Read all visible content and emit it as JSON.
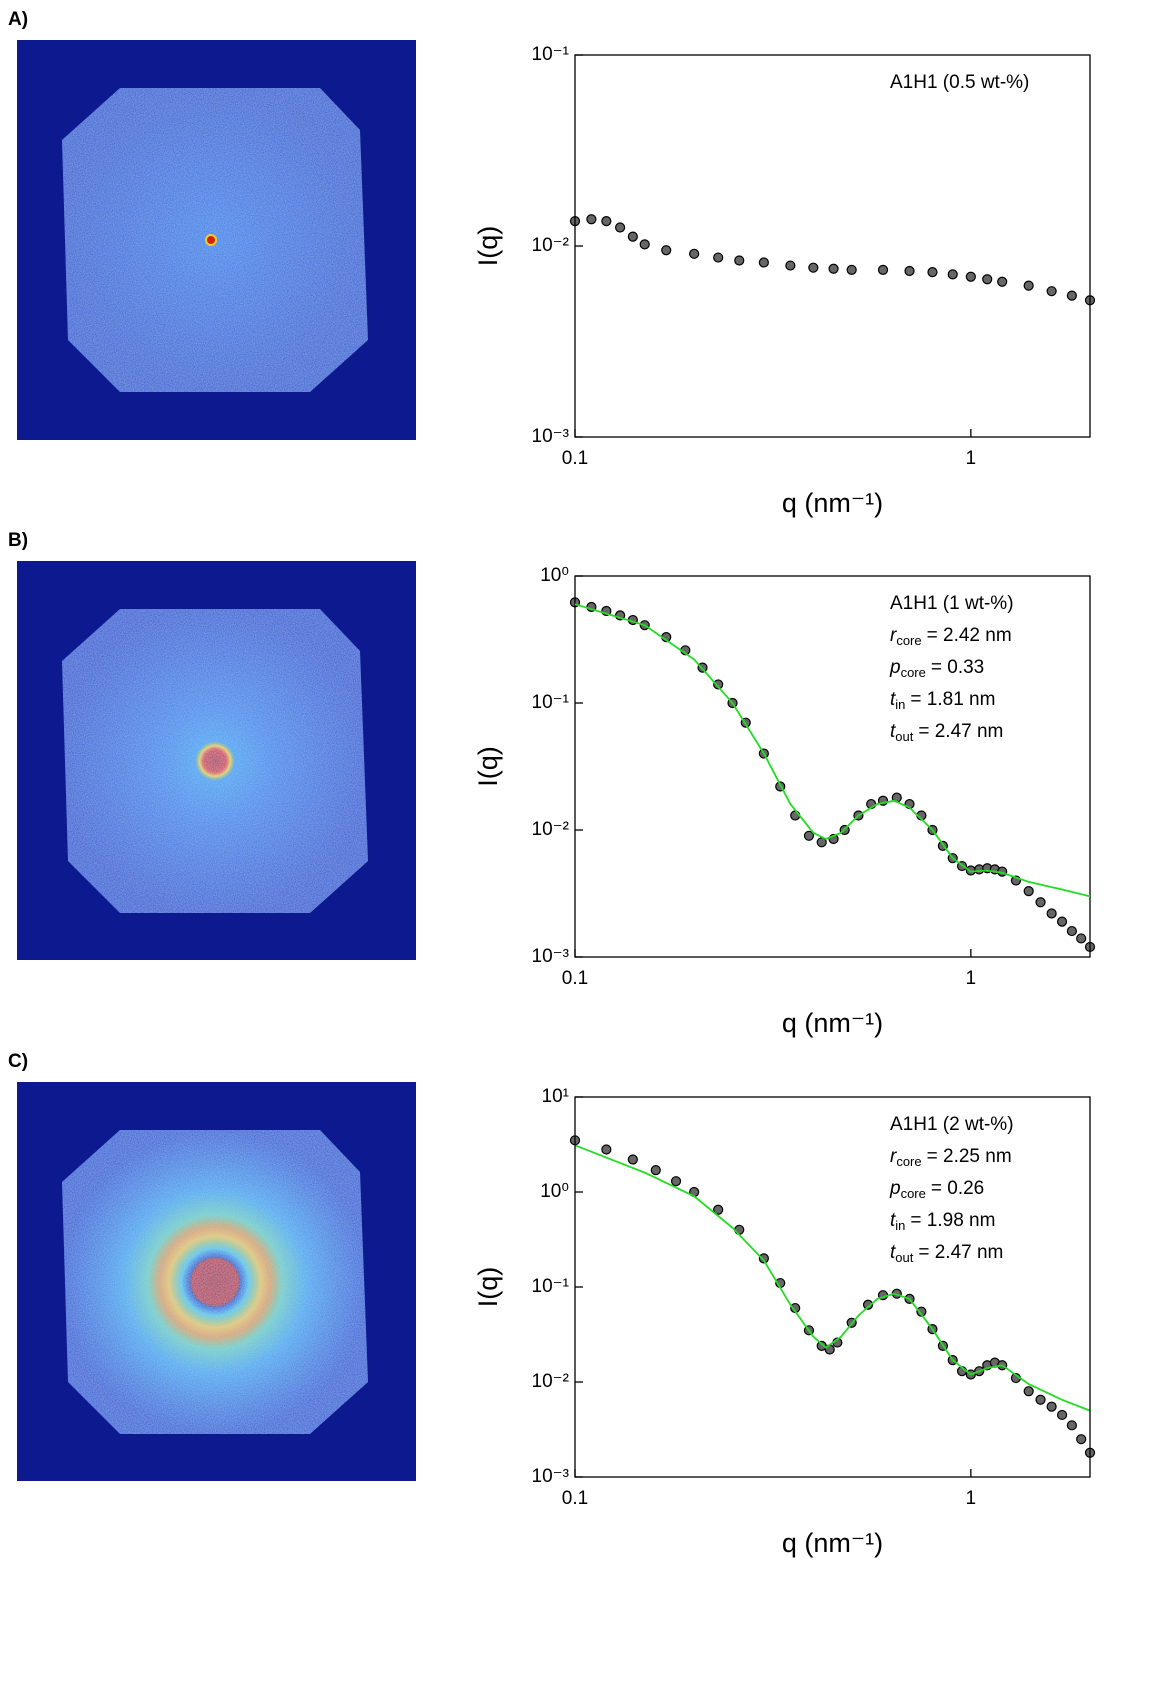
{
  "chart_data": [
    {
      "type": "scatter",
      "panel": "A)",
      "xlabel": "q (nm⁻¹)",
      "ylabel": "I(q)",
      "log_x": true,
      "log_y": true,
      "xlim": [
        0.1,
        2
      ],
      "ylim": [
        0.001,
        0.1
      ],
      "xticks": [
        0.1,
        1
      ],
      "yticks": [
        {
          "value": 0.001,
          "label": "10⁻³"
        },
        {
          "value": 0.01,
          "label": "10⁻²"
        },
        {
          "value": 0.1,
          "label": "10⁻¹"
        }
      ],
      "annotations": [
        {
          "text": "A1H1 (0.5 wt-%)"
        }
      ],
      "series": [
        {
          "type": "scatter",
          "color": "#000000",
          "x": [
            0.1,
            0.11,
            0.12,
            0.13,
            0.14,
            0.15,
            0.17,
            0.2,
            0.23,
            0.26,
            0.3,
            0.35,
            0.4,
            0.45,
            0.5,
            0.6,
            0.7,
            0.8,
            0.9,
            1.0,
            1.1,
            1.2,
            1.4,
            1.6,
            1.8,
            2.0
          ],
          "values": [
            0.0135,
            0.0138,
            0.0135,
            0.0125,
            0.0112,
            0.0102,
            0.0095,
            0.0091,
            0.0087,
            0.0084,
            0.0082,
            0.0079,
            0.0077,
            0.0076,
            0.0075,
            0.0075,
            0.0074,
            0.0073,
            0.0071,
            0.0069,
            0.0067,
            0.0065,
            0.0062,
            0.0058,
            0.0055,
            0.0052
          ]
        }
      ]
    },
    {
      "type": "scatter",
      "panel": "B)",
      "xlabel": "q (nm⁻¹)",
      "ylabel": "I(q)",
      "log_x": true,
      "log_y": true,
      "xlim": [
        0.1,
        2
      ],
      "ylim": [
        0.001,
        1
      ],
      "xticks": [
        0.1,
        1
      ],
      "yticks": [
        {
          "value": 0.001,
          "label": "10⁻³"
        },
        {
          "value": 0.01,
          "label": "10⁻²"
        },
        {
          "value": 0.1,
          "label": "10⁻¹"
        },
        {
          "value": 1,
          "label": "10⁰"
        }
      ],
      "annotations": [
        {
          "text": "A1H1 (1 wt-%)"
        },
        {
          "symbol": "r",
          "sub": "core",
          "text": "= 2.42 nm"
        },
        {
          "symbol": "p",
          "sub": "core",
          "text": "= 0.33"
        },
        {
          "symbol": "t",
          "sub": "in",
          "text": "= 1.81 nm"
        },
        {
          "symbol": "t",
          "sub": "out",
          "text": "= 2.47 nm"
        }
      ],
      "series": [
        {
          "type": "scatter",
          "color": "#000000",
          "x": [
            0.1,
            0.11,
            0.12,
            0.13,
            0.14,
            0.15,
            0.17,
            0.19,
            0.21,
            0.23,
            0.25,
            0.27,
            0.3,
            0.33,
            0.36,
            0.39,
            0.42,
            0.45,
            0.48,
            0.52,
            0.56,
            0.6,
            0.65,
            0.7,
            0.75,
            0.8,
            0.85,
            0.9,
            0.95,
            1.0,
            1.05,
            1.1,
            1.15,
            1.2,
            1.3,
            1.4,
            1.5,
            1.6,
            1.7,
            1.8,
            1.9,
            2.0
          ],
          "values": [
            0.62,
            0.57,
            0.53,
            0.49,
            0.45,
            0.41,
            0.33,
            0.26,
            0.19,
            0.14,
            0.1,
            0.07,
            0.04,
            0.022,
            0.013,
            0.009,
            0.008,
            0.0085,
            0.01,
            0.013,
            0.016,
            0.017,
            0.018,
            0.016,
            0.013,
            0.01,
            0.0075,
            0.006,
            0.0052,
            0.0048,
            0.0049,
            0.005,
            0.0049,
            0.0047,
            0.004,
            0.0033,
            0.0027,
            0.0022,
            0.0019,
            0.0016,
            0.0014,
            0.0012
          ]
        },
        {
          "type": "line",
          "color": "#22dd22",
          "x": [
            0.1,
            0.15,
            0.2,
            0.25,
            0.3,
            0.35,
            0.4,
            0.43,
            0.47,
            0.52,
            0.58,
            0.64,
            0.7,
            0.8,
            0.9,
            1.0,
            1.1,
            1.2,
            1.4,
            1.7,
            2.0
          ],
          "values": [
            0.6,
            0.41,
            0.22,
            0.1,
            0.04,
            0.016,
            0.0095,
            0.0085,
            0.0095,
            0.013,
            0.016,
            0.017,
            0.015,
            0.01,
            0.006,
            0.0047,
            0.0048,
            0.0046,
            0.0039,
            0.0034,
            0.003
          ]
        }
      ]
    },
    {
      "type": "scatter",
      "panel": "C)",
      "xlabel": "q (nm⁻¹)",
      "ylabel": "I(q)",
      "log_x": true,
      "log_y": true,
      "xlim": [
        0.1,
        2
      ],
      "ylim": [
        0.001,
        10
      ],
      "xticks": [
        0.1,
        1
      ],
      "yticks": [
        {
          "value": 0.001,
          "label": "10⁻³"
        },
        {
          "value": 0.01,
          "label": "10⁻²"
        },
        {
          "value": 0.1,
          "label": "10⁻¹"
        },
        {
          "value": 1,
          "label": "10⁰"
        },
        {
          "value": 10,
          "label": "10¹"
        }
      ],
      "annotations": [
        {
          "text": "A1H1 (2 wt-%)"
        },
        {
          "symbol": "r",
          "sub": "core",
          "text": "= 2.25 nm"
        },
        {
          "symbol": "p",
          "sub": "core",
          "text": "= 0.26"
        },
        {
          "symbol": "t",
          "sub": "in",
          "text": "= 1.98 nm"
        },
        {
          "symbol": "t",
          "sub": "out",
          "text": "= 2.47 nm"
        }
      ],
      "series": [
        {
          "type": "scatter",
          "color": "#000000",
          "x": [
            0.1,
            0.12,
            0.14,
            0.16,
            0.18,
            0.2,
            0.23,
            0.26,
            0.3,
            0.33,
            0.36,
            0.39,
            0.42,
            0.44,
            0.46,
            0.5,
            0.55,
            0.6,
            0.65,
            0.7,
            0.75,
            0.8,
            0.85,
            0.9,
            0.95,
            1.0,
            1.05,
            1.1,
            1.15,
            1.2,
            1.3,
            1.4,
            1.5,
            1.6,
            1.7,
            1.8,
            1.9,
            2.0
          ],
          "values": [
            3.5,
            2.8,
            2.2,
            1.7,
            1.3,
            1.0,
            0.65,
            0.4,
            0.2,
            0.11,
            0.06,
            0.035,
            0.024,
            0.022,
            0.026,
            0.042,
            0.065,
            0.082,
            0.085,
            0.075,
            0.055,
            0.036,
            0.024,
            0.017,
            0.013,
            0.012,
            0.013,
            0.015,
            0.016,
            0.015,
            0.011,
            0.008,
            0.0065,
            0.0055,
            0.0045,
            0.0035,
            0.0025,
            0.0018
          ]
        },
        {
          "type": "line",
          "color": "#22dd22",
          "x": [
            0.1,
            0.15,
            0.2,
            0.25,
            0.3,
            0.35,
            0.4,
            0.43,
            0.47,
            0.52,
            0.58,
            0.64,
            0.7,
            0.8,
            0.9,
            1.0,
            1.1,
            1.2,
            1.4,
            1.7,
            2.0
          ],
          "values": [
            3.1,
            1.6,
            0.9,
            0.42,
            0.19,
            0.065,
            0.03,
            0.023,
            0.03,
            0.05,
            0.075,
            0.085,
            0.075,
            0.036,
            0.017,
            0.012,
            0.014,
            0.015,
            0.0095,
            0.0065,
            0.005
          ]
        }
      ]
    }
  ]
}
